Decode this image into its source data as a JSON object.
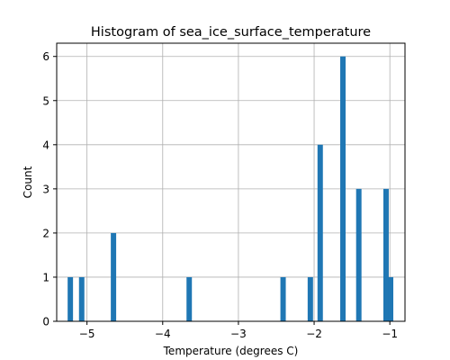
{
  "chart_data": {
    "type": "bar",
    "title": "Histogram of sea_ice_surface_temperature",
    "xlabel": "Temperature (degrees C)",
    "ylabel": "Count",
    "xlim": [
      -5.4,
      -0.8
    ],
    "ylim": [
      0,
      6.3
    ],
    "grid": true,
    "bar_color": "#1f77b4",
    "bin_width": 0.071,
    "x_ticks": [
      -5,
      -4,
      -3,
      -2,
      -1
    ],
    "x_tick_labels": [
      "−5",
      "−4",
      "−3",
      "−2",
      "−1"
    ],
    "y_ticks": [
      0,
      1,
      2,
      3,
      4,
      5,
      6
    ],
    "y_tick_labels": [
      "0",
      "1",
      "2",
      "3",
      "4",
      "5",
      "6"
    ],
    "bins": [
      {
        "x": -5.22,
        "count": 1
      },
      {
        "x": -5.07,
        "count": 1
      },
      {
        "x": -4.65,
        "count": 2
      },
      {
        "x": -3.65,
        "count": 1
      },
      {
        "x": -2.41,
        "count": 1
      },
      {
        "x": -2.05,
        "count": 1
      },
      {
        "x": -1.92,
        "count": 4
      },
      {
        "x": -1.62,
        "count": 6
      },
      {
        "x": -1.41,
        "count": 3
      },
      {
        "x": -1.05,
        "count": 3
      },
      {
        "x": -0.99,
        "count": 1
      }
    ]
  }
}
